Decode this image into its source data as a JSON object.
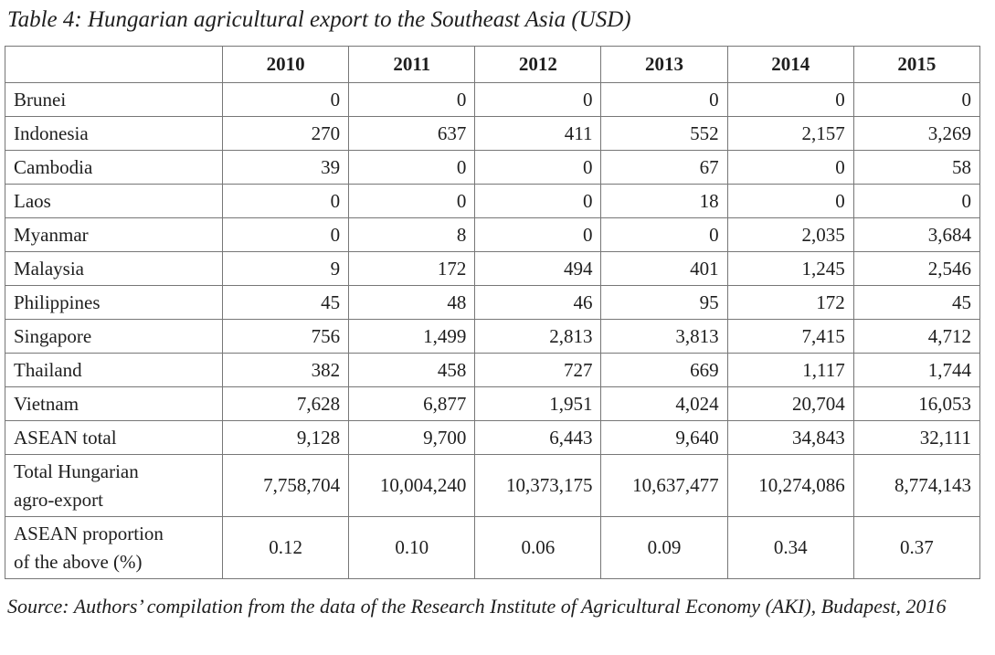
{
  "title": "Table 4: Hungarian agricultural export to the Southeast Asia (USD)",
  "table": {
    "header": [
      "2010",
      "2011",
      "2012",
      "2013",
      "2014",
      "2015"
    ],
    "rows": [
      {
        "label": [
          "Brunei"
        ],
        "cells": [
          "0",
          "0",
          "0",
          "0",
          "0",
          "0"
        ]
      },
      {
        "label": [
          "Indonesia"
        ],
        "cells": [
          "270",
          "637",
          "411",
          "552",
          "2,157",
          "3,269"
        ]
      },
      {
        "label": [
          "Cambodia"
        ],
        "cells": [
          "39",
          "0",
          "0",
          "67",
          "0",
          "58"
        ]
      },
      {
        "label": [
          "Laos"
        ],
        "cells": [
          "0",
          "0",
          "0",
          "18",
          "0",
          "0"
        ]
      },
      {
        "label": [
          "Myanmar"
        ],
        "cells": [
          "0",
          "8",
          "0",
          "0",
          "2,035",
          "3,684"
        ]
      },
      {
        "label": [
          "Malaysia"
        ],
        "cells": [
          "9",
          "172",
          "494",
          "401",
          "1,245",
          "2,546"
        ]
      },
      {
        "label": [
          "Philippines"
        ],
        "cells": [
          "45",
          "48",
          "46",
          "95",
          "172",
          "45"
        ]
      },
      {
        "label": [
          "Singapore"
        ],
        "cells": [
          "756",
          "1,499",
          "2,813",
          "3,813",
          "7,415",
          "4,712"
        ]
      },
      {
        "label": [
          "Thailand"
        ],
        "cells": [
          "382",
          "458",
          "727",
          "669",
          "1,117",
          "1,744"
        ]
      },
      {
        "label": [
          "Vietnam"
        ],
        "cells": [
          "7,628",
          "6,877",
          "1,951",
          "4,024",
          "20,704",
          "16,053"
        ]
      },
      {
        "label": [
          "ASEAN total"
        ],
        "cells": [
          "9,128",
          "9,700",
          "6,443",
          "9,640",
          "34,843",
          "32,111"
        ]
      },
      {
        "label": [
          "Total Hungarian",
          "agro-export"
        ],
        "cells": [
          "7,758,704",
          "10,004,240",
          "10,373,175",
          "10,637,477",
          "10,274,086",
          "8,774,143"
        ]
      },
      {
        "label": [
          "ASEAN proportion",
          "of the above (%)"
        ],
        "cells": [
          "0.12",
          "0.10",
          "0.06",
          "0.09",
          "0.34",
          "0.37"
        ]
      }
    ]
  },
  "source": "Source: Authors’ compilation from the data of the Research Institute of Agricultural Economy (AKI), Budapest, 2016"
}
